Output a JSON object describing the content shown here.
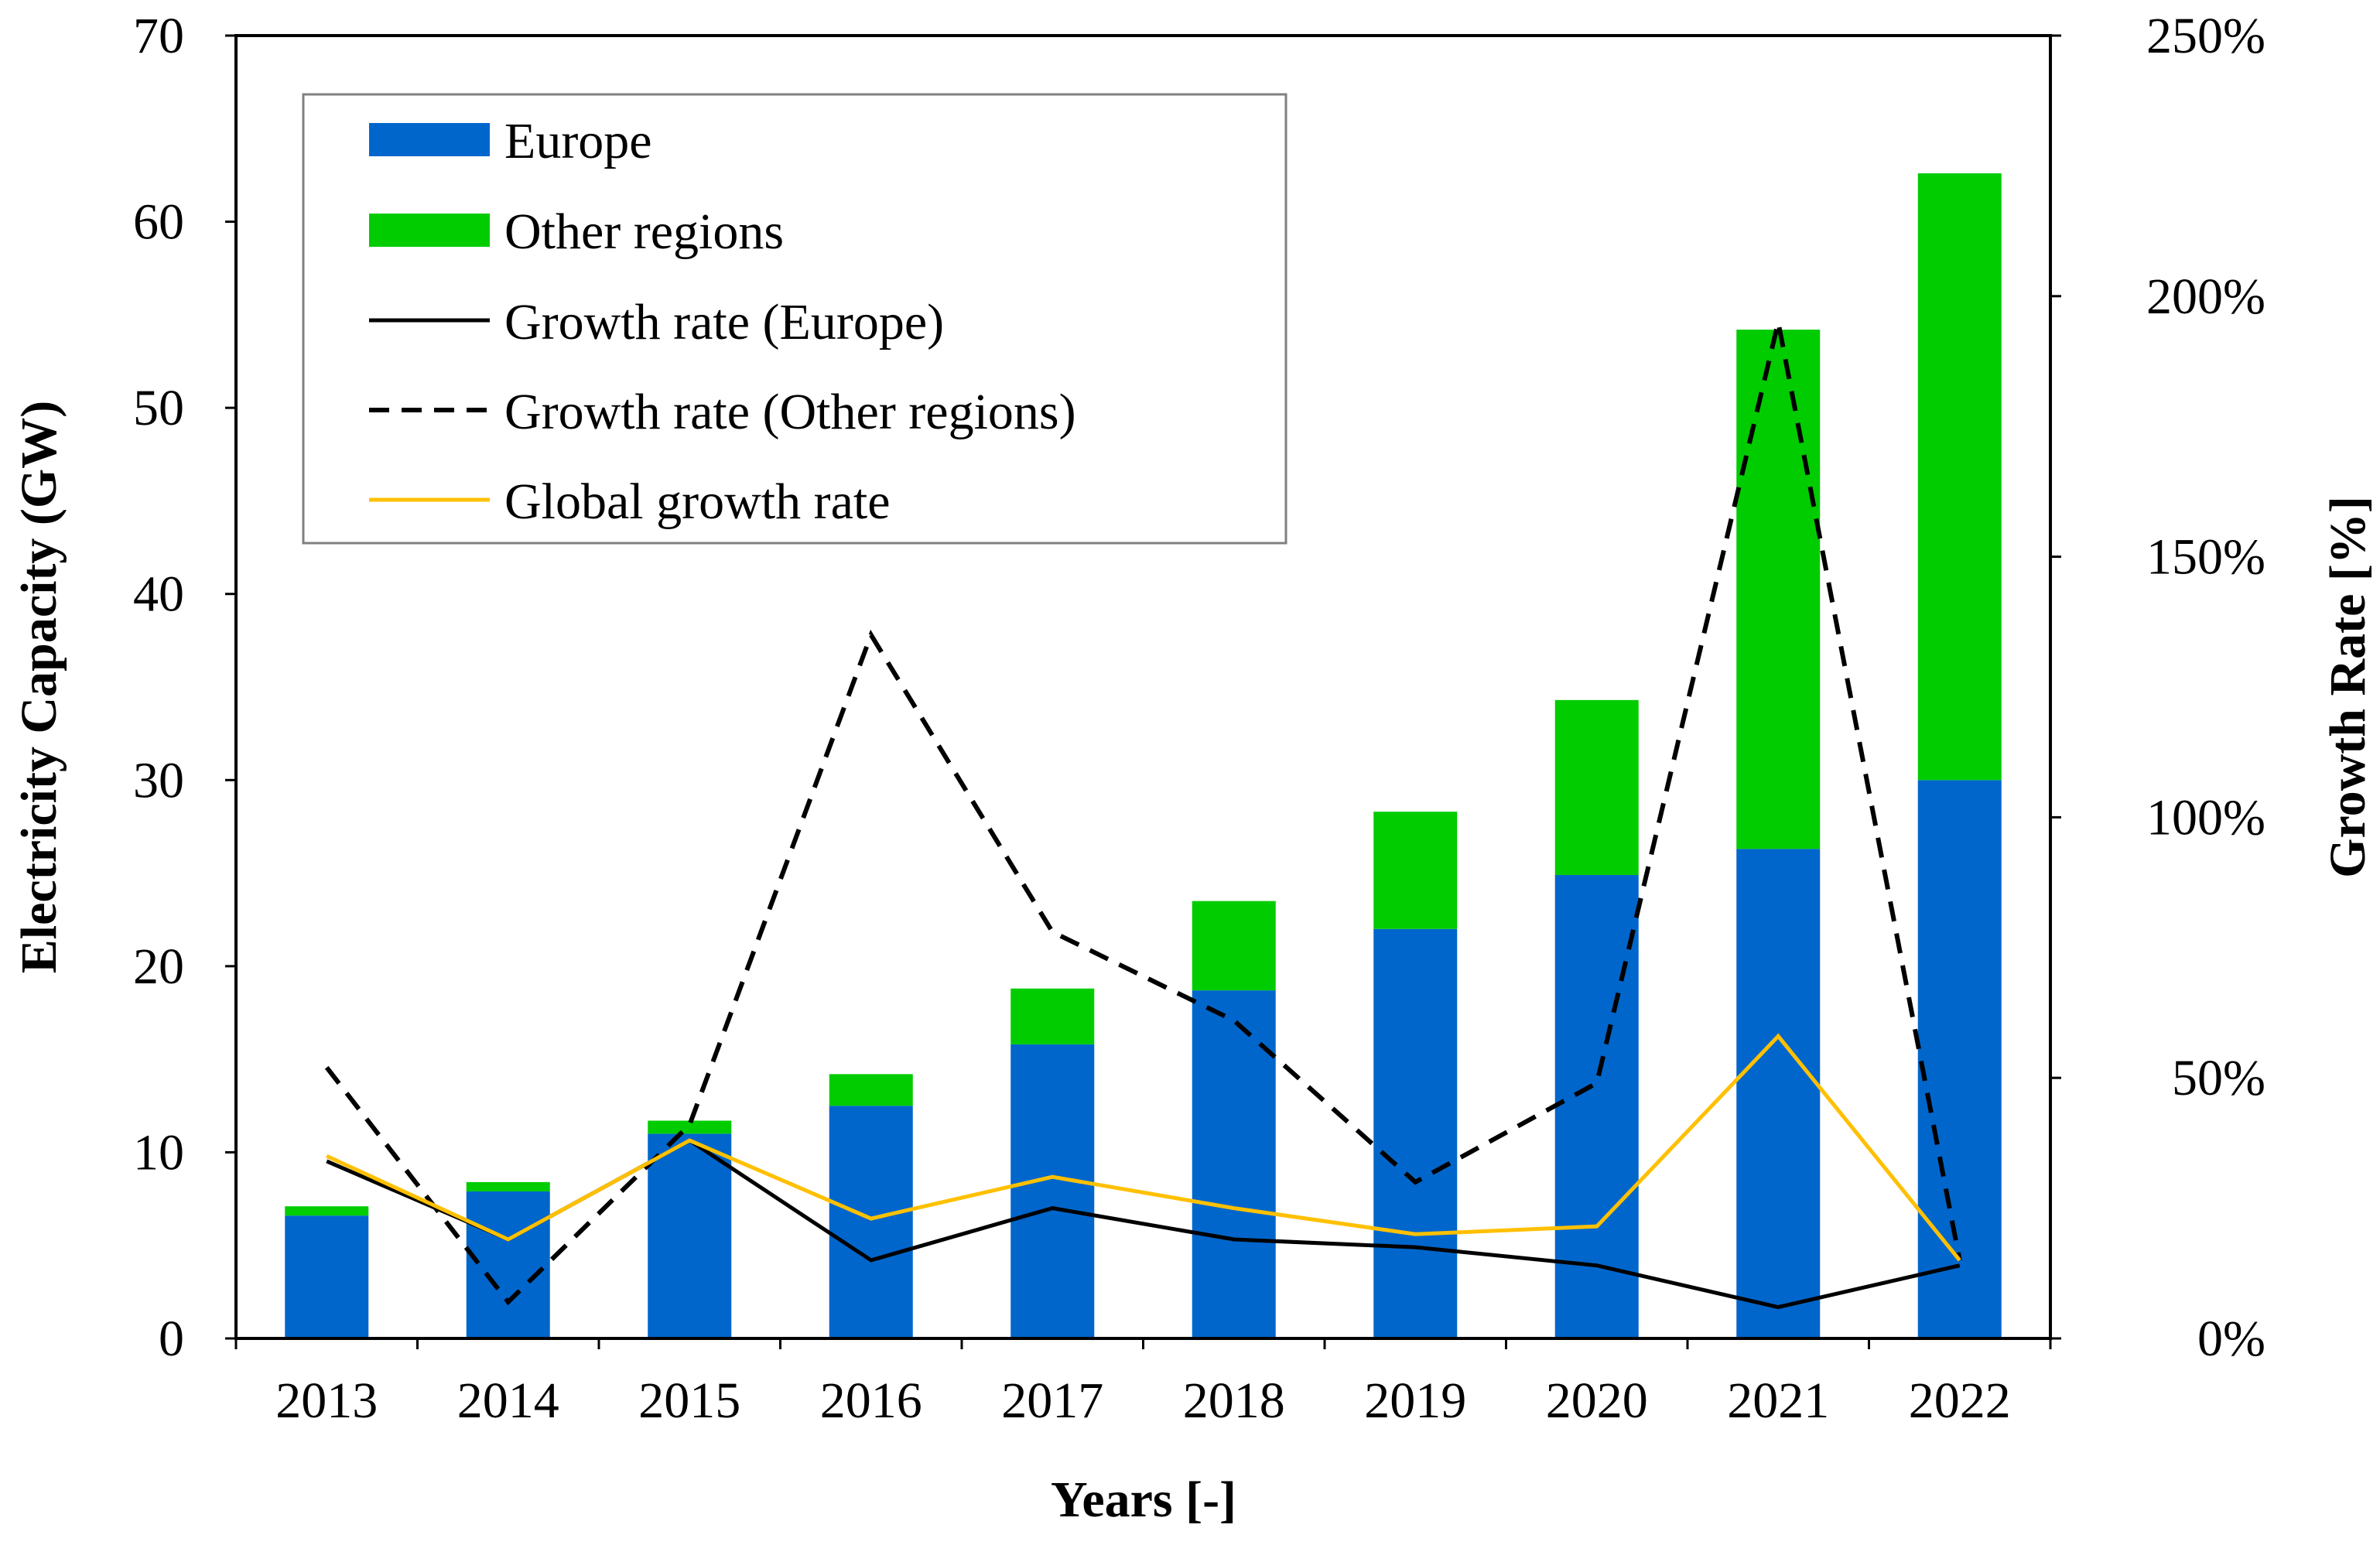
{
  "chart_data": {
    "type": "bar+line",
    "categories": [
      "2013",
      "2014",
      "2015",
      "2016",
      "2017",
      "2018",
      "2019",
      "2020",
      "2021",
      "2022"
    ],
    "series": [
      {
        "name": "Europe",
        "kind": "bar",
        "axis": "left",
        "color": "#0066CC",
        "values": [
          6.6,
          7.9,
          11.0,
          12.5,
          15.8,
          18.7,
          22.0,
          24.9,
          26.3,
          30.0
        ]
      },
      {
        "name": "Other regions",
        "kind": "bar",
        "axis": "left",
        "color": "#00CC00",
        "values": [
          0.5,
          0.5,
          0.7,
          1.7,
          3.0,
          4.8,
          6.3,
          9.4,
          27.9,
          32.6
        ]
      },
      {
        "name": "Growth rate (Europe)",
        "kind": "line",
        "axis": "right",
        "color": "#000000",
        "dash": "solid",
        "values": [
          34,
          19,
          38,
          15,
          25,
          19,
          17.5,
          14,
          6,
          14
        ]
      },
      {
        "name": "Growth rate (Other regions)",
        "kind": "line",
        "axis": "right",
        "color": "#000000",
        "dash": "dashed",
        "values": [
          52,
          7,
          41,
          135,
          78,
          61,
          30,
          49,
          195,
          15
        ]
      },
      {
        "name": "Global growth rate",
        "kind": "line",
        "axis": "right",
        "color": "#FFC000",
        "dash": "solid",
        "values": [
          35,
          19,
          38,
          23,
          31,
          25,
          20,
          21.5,
          58,
          15
        ]
      }
    ],
    "y_left": {
      "label": "Electricity Capacity (GW)",
      "range": [
        0,
        70
      ],
      "ticks": [
        "0",
        "10",
        "20",
        "30",
        "40",
        "50",
        "60",
        "70"
      ]
    },
    "y_right": {
      "label": "Growth Rate [%]",
      "range": [
        0,
        250
      ],
      "ticks": [
        "0%",
        "50%",
        "100%",
        "150%",
        "200%",
        "250%"
      ]
    },
    "x_axis": {
      "label": "Years [-]"
    },
    "legend": {
      "placement": "top-left",
      "entries": [
        "Europe",
        "Other regions",
        "Growth rate (Europe)",
        "Growth rate (Other regions)",
        "Global growth rate"
      ]
    },
    "grid": false
  }
}
